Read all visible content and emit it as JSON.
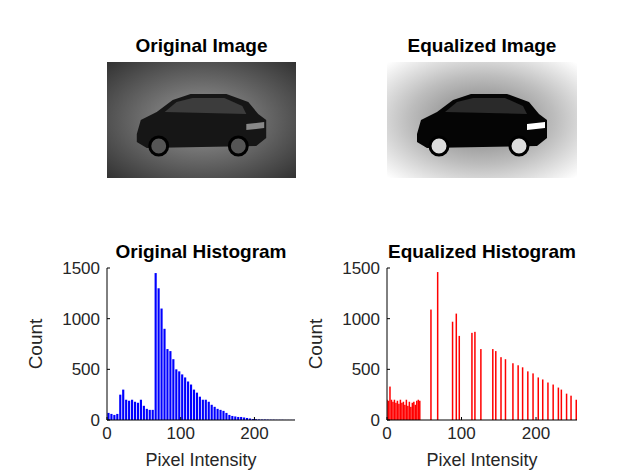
{
  "chart_data": [
    {
      "type": "image",
      "title": "Original Image"
    },
    {
      "type": "image",
      "title": "Equalized Image"
    },
    {
      "type": "histogram",
      "title": "Original Histogram",
      "x_label": "Pixel Intensity",
      "y_label": "Count",
      "color": "#0000ff",
      "bins": [
        0,
        4,
        8,
        12,
        16,
        20,
        24,
        28,
        32,
        36,
        40,
        44,
        48,
        52,
        56,
        60,
        64,
        68,
        72,
        76,
        80,
        84,
        88,
        92,
        96,
        100,
        104,
        108,
        112,
        116,
        120,
        124,
        128,
        132,
        136,
        140,
        144,
        148,
        152,
        156,
        160,
        164,
        168,
        172,
        176,
        180,
        184,
        188,
        192,
        196,
        200,
        204,
        208,
        212,
        216,
        220,
        224,
        228,
        232,
        236,
        240,
        244,
        248,
        252,
        256
      ],
      "values": [
        70,
        60,
        50,
        60,
        250,
        300,
        200,
        190,
        200,
        180,
        170,
        200,
        140,
        110,
        100,
        100,
        1450,
        1300,
        1100,
        900,
        700,
        680,
        600,
        500,
        480,
        450,
        420,
        380,
        350,
        300,
        270,
        230,
        200,
        200,
        180,
        150,
        130,
        110,
        100,
        90,
        70,
        50,
        40,
        35,
        30,
        30,
        25,
        20,
        15,
        10,
        8,
        6,
        5,
        5,
        4,
        3,
        3,
        2,
        2,
        2,
        1,
        1,
        1,
        1
      ],
      "xlim": [
        0,
        255
      ],
      "ylim": [
        0,
        1500
      ],
      "xticks": [
        0,
        100,
        200
      ],
      "yticks": [
        0,
        500,
        1000,
        1500
      ]
    },
    {
      "type": "bar",
      "title": "Equalized Histogram",
      "x_label": "Pixel Intensity",
      "y_label": "Count",
      "color": "#ff0000",
      "x": [
        0,
        2,
        4,
        6,
        8,
        10,
        12,
        14,
        16,
        18,
        20,
        22,
        24,
        26,
        28,
        30,
        32,
        34,
        36,
        38,
        40,
        42,
        44,
        59,
        68,
        88,
        93,
        97,
        114,
        118,
        126,
        142,
        146,
        153,
        159,
        169,
        176,
        182,
        189,
        196,
        203,
        209,
        216,
        223,
        230,
        234,
        241,
        247,
        254
      ],
      "values": [
        200,
        190,
        330,
        200,
        180,
        200,
        170,
        190,
        160,
        200,
        170,
        180,
        150,
        200,
        140,
        180,
        130,
        170,
        180,
        150,
        190,
        200,
        190,
        1090,
        1460,
        970,
        1050,
        830,
        860,
        870,
        700,
        700,
        680,
        620,
        600,
        560,
        540,
        520,
        480,
        460,
        420,
        400,
        370,
        350,
        320,
        300,
        260,
        240,
        200
      ],
      "xlim": [
        0,
        255
      ],
      "ylim": [
        0,
        1500
      ],
      "xticks": [
        0,
        100,
        200
      ],
      "yticks": [
        0,
        500,
        1000,
        1500
      ]
    }
  ]
}
